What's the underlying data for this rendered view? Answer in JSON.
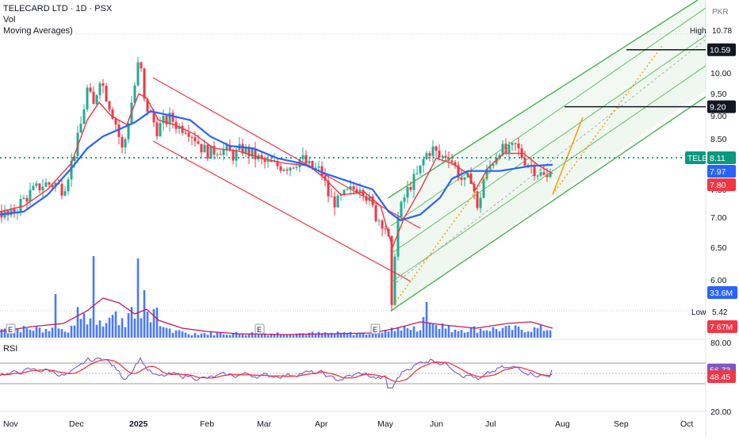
{
  "header": {
    "title": "TELECARD LTD · 1D · PSX",
    "vol_label": "Vol",
    "ma_label": "Moving Averages)"
  },
  "price_axis": {
    "currency": "PKR",
    "ticks": [
      "10.00",
      "9.50",
      "9.00",
      "8.50",
      "7.50",
      "7.00",
      "6.50",
      "6.00"
    ],
    "labels": {
      "high_text": "High",
      "high_value": "10.78",
      "level_1": "10.59",
      "level_2": "9.20",
      "ticker": "TELE",
      "last_price": "8.11",
      "ma_blue": "7.97",
      "ma_red": "7.80",
      "vol_value": "33.6M",
      "low_text": "Low",
      "low_value": "5.42",
      "vol_ma_value": "7.67M"
    }
  },
  "rsi": {
    "label": "RSI",
    "ticks": [
      "80.00",
      "20.00"
    ],
    "value": "56.73",
    "ma_value": "48.45"
  },
  "time_axis": [
    "Nov",
    "Dec",
    "2025",
    "Feb",
    "Mar",
    "Apr",
    "May",
    "Jun",
    "Jul",
    "Aug",
    "Sep",
    "Oct"
  ],
  "event_markers": [
    "E",
    "E",
    "E"
  ],
  "colors": {
    "up": "#22ab94",
    "down": "#f23645",
    "blue_ma": "#2962ff",
    "red_ma": "#f23645",
    "channel_red": "#f23645",
    "channel_green": "#4caf50",
    "projection": "#ff9800",
    "volume": "#2962ff",
    "rsi_line": "#7e57c2",
    "rsi_ma": "#f23645",
    "last_price_line": "#089981"
  },
  "chart_data": {
    "type": "candlestick",
    "symbol": "TELE",
    "exchange": "PSX",
    "interval": "1D",
    "x_ticks": [
      "Nov",
      "Dec",
      "2025",
      "Feb",
      "Mar",
      "Apr",
      "May",
      "Jun",
      "Jul",
      "Aug",
      "Sep",
      "Oct"
    ],
    "price_range": [
      5.3,
      10.95
    ],
    "high": 10.78,
    "low": 5.42,
    "last": 8.11,
    "close_path": [
      [
        0,
        7.1
      ],
      [
        12,
        7.0
      ],
      [
        25,
        7.25
      ],
      [
        40,
        7.45
      ],
      [
        55,
        7.6
      ],
      [
        70,
        7.6
      ],
      [
        80,
        7.5
      ],
      [
        90,
        8.0
      ],
      [
        100,
        8.6
      ],
      [
        110,
        9.6
      ],
      [
        118,
        9.2
      ],
      [
        126,
        9.9
      ],
      [
        135,
        9.4
      ],
      [
        145,
        8.9
      ],
      [
        155,
        8.2
      ],
      [
        162,
        8.9
      ],
      [
        170,
        9.7
      ],
      [
        176,
        10.4
      ],
      [
        182,
        9.3
      ],
      [
        190,
        9.0
      ],
      [
        198,
        8.7
      ],
      [
        206,
        8.85
      ],
      [
        215,
        8.95
      ],
      [
        225,
        8.75
      ],
      [
        235,
        8.75
      ],
      [
        245,
        8.55
      ],
      [
        255,
        8.3
      ],
      [
        265,
        8.2
      ],
      [
        275,
        8.3
      ],
      [
        285,
        8.25
      ],
      [
        295,
        8.15
      ],
      [
        305,
        8.3
      ],
      [
        320,
        8.15
      ],
      [
        335,
        8.0
      ],
      [
        350,
        7.95
      ],
      [
        365,
        7.95
      ],
      [
        380,
        8.1
      ],
      [
        392,
        7.9
      ],
      [
        405,
        7.85
      ],
      [
        415,
        7.35
      ],
      [
        425,
        7.25
      ],
      [
        435,
        7.4
      ],
      [
        445,
        7.5
      ],
      [
        455,
        7.6
      ],
      [
        465,
        7.3
      ],
      [
        475,
        7.0
      ],
      [
        485,
        6.9
      ],
      [
        490,
        6.6
      ],
      [
        494,
        5.55
      ],
      [
        500,
        6.9
      ],
      [
        510,
        7.35
      ],
      [
        518,
        7.6
      ],
      [
        528,
        7.8
      ],
      [
        536,
        8.15
      ],
      [
        545,
        8.3
      ],
      [
        555,
        8.1
      ],
      [
        565,
        8.2
      ],
      [
        575,
        7.9
      ],
      [
        585,
        7.6
      ],
      [
        595,
        7.75
      ],
      [
        602,
        7.1
      ],
      [
        610,
        7.7
      ],
      [
        620,
        8.0
      ],
      [
        630,
        8.3
      ],
      [
        640,
        8.2
      ],
      [
        650,
        8.35
      ],
      [
        660,
        8.1
      ],
      [
        670,
        7.95
      ],
      [
        680,
        7.8
      ],
      [
        690,
        7.7
      ],
      [
        697,
        8.11
      ]
    ],
    "ma_blue_path": [
      [
        0,
        7.05
      ],
      [
        30,
        7.1
      ],
      [
        60,
        7.4
      ],
      [
        90,
        7.9
      ],
      [
        110,
        8.3
      ],
      [
        130,
        8.55
      ],
      [
        150,
        8.7
      ],
      [
        170,
        8.85
      ],
      [
        190,
        9.1
      ],
      [
        215,
        9.0
      ],
      [
        240,
        8.9
      ],
      [
        265,
        8.55
      ],
      [
        290,
        8.35
      ],
      [
        320,
        8.3
      ],
      [
        350,
        8.1
      ],
      [
        380,
        8.0
      ],
      [
        410,
        7.8
      ],
      [
        440,
        7.65
      ],
      [
        470,
        7.5
      ],
      [
        490,
        7.1
      ],
      [
        505,
        6.95
      ],
      [
        530,
        7.05
      ],
      [
        555,
        7.35
      ],
      [
        570,
        7.7
      ],
      [
        590,
        7.85
      ],
      [
        610,
        7.85
      ],
      [
        630,
        7.85
      ],
      [
        650,
        7.9
      ],
      [
        670,
        7.95
      ],
      [
        697,
        7.97
      ]
    ],
    "ma_red_path": [
      [
        0,
        7.1
      ],
      [
        30,
        7.2
      ],
      [
        60,
        7.5
      ],
      [
        90,
        8.0
      ],
      [
        110,
        8.9
      ],
      [
        125,
        9.3
      ],
      [
        140,
        9.0
      ],
      [
        160,
        8.8
      ],
      [
        175,
        9.5
      ],
      [
        185,
        9.4
      ],
      [
        200,
        8.9
      ],
      [
        220,
        8.8
      ],
      [
        245,
        8.6
      ],
      [
        270,
        8.3
      ],
      [
        300,
        8.25
      ],
      [
        330,
        8.1
      ],
      [
        360,
        8.0
      ],
      [
        390,
        7.95
      ],
      [
        410,
        7.7
      ],
      [
        430,
        7.4
      ],
      [
        460,
        7.45
      ],
      [
        480,
        7.2
      ],
      [
        495,
        6.5
      ],
      [
        510,
        7.0
      ],
      [
        530,
        7.5
      ],
      [
        550,
        8.1
      ],
      [
        570,
        8.0
      ],
      [
        590,
        7.8
      ],
      [
        600,
        7.5
      ],
      [
        615,
        7.9
      ],
      [
        635,
        8.2
      ],
      [
        660,
        8.2
      ],
      [
        680,
        7.95
      ],
      [
        697,
        7.8
      ]
    ],
    "volume": {
      "last": "33.6M",
      "ma_last": "7.67M"
    },
    "rsi": {
      "last": 56.73,
      "ma_last": 48.45,
      "range": [
        0,
        100
      ],
      "levels": [
        70,
        50,
        30
      ]
    }
  }
}
